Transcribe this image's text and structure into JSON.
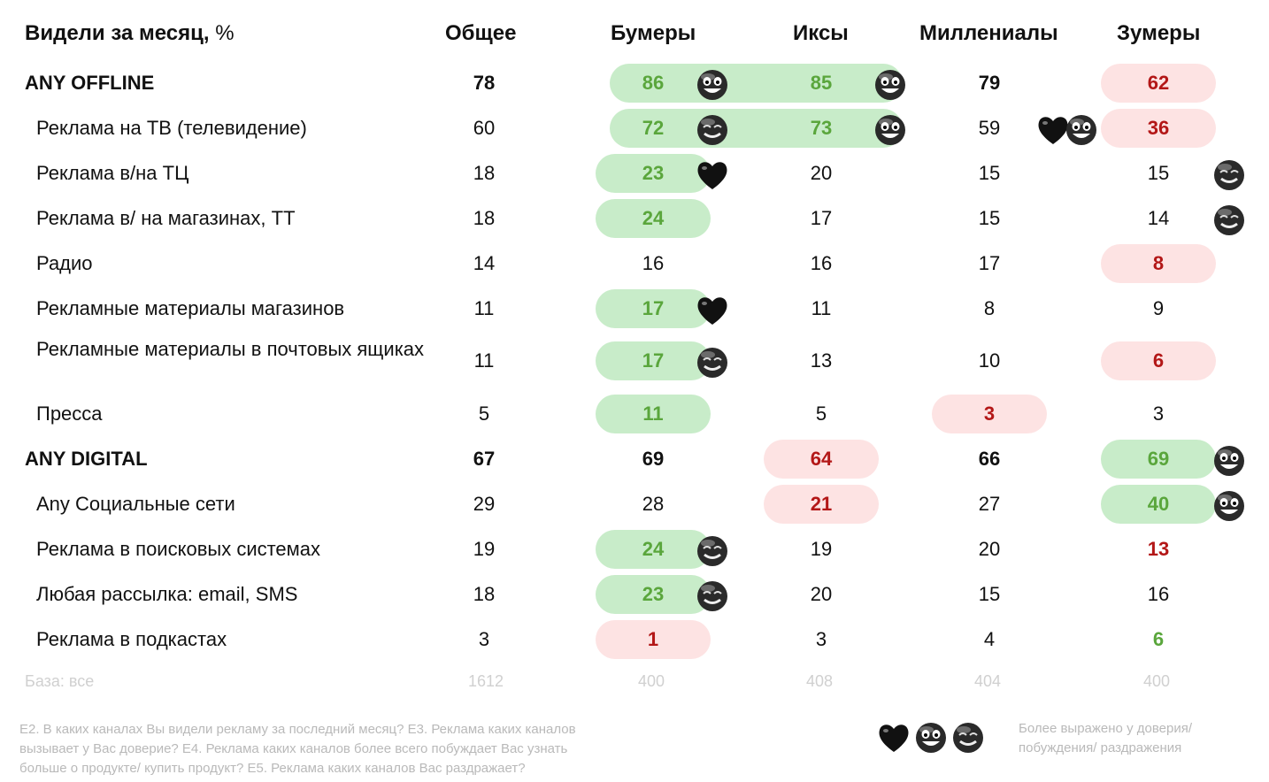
{
  "header": {
    "title_bold": "Видели за месяц,",
    "title_unit": " %",
    "col_total": "Общее",
    "col_boomers": "Бумеры",
    "col_x": "Иксы",
    "col_millennials": "Миллениалы",
    "col_zoomers": "Зумеры"
  },
  "colors": {
    "green_fill": "#c8ecc9",
    "green_text": "#5aa63c",
    "red_fill": "#fde3e3",
    "red_text": "#b31717",
    "muted": "#c8c8c8"
  },
  "rows": [
    {
      "label": "ANY OFFLINE",
      "group": true,
      "total": "78",
      "boomers": "86",
      "x": "85",
      "millennials": "79",
      "zoomers": "62"
    },
    {
      "label": "Реклама на ТВ (телевидение)",
      "total": "60",
      "boomers": "72",
      "x": "73",
      "millennials": "59",
      "zoomers": "36"
    },
    {
      "label": "Реклама в/на ТЦ",
      "total": "18",
      "boomers": "23",
      "x": "20",
      "millennials": "15",
      "zoomers": "15"
    },
    {
      "label": "Реклама в/ на магазинах, ТТ",
      "total": "18",
      "boomers": "24",
      "x": "17",
      "millennials": "15",
      "zoomers": "14"
    },
    {
      "label": "Радио",
      "total": "14",
      "boomers": "16",
      "x": "16",
      "millennials": "17",
      "zoomers": "8"
    },
    {
      "label": "Рекламные материалы магазинов",
      "total": "11",
      "boomers": "17",
      "x": "11",
      "millennials": "8",
      "zoomers": "9"
    },
    {
      "label": "Рекламные материалы в почтовых ящиках",
      "total": "11",
      "boomers": "17",
      "x": "13",
      "millennials": "10",
      "zoomers": "6"
    },
    {
      "label": "Пресса",
      "total": "5",
      "boomers": "11",
      "x": "5",
      "millennials": "3",
      "zoomers": "3"
    },
    {
      "label": "ANY DIGITAL",
      "group": true,
      "total": "67",
      "boomers": "69",
      "x": "64",
      "millennials": "66",
      "zoomers": "69"
    },
    {
      "label": "Any Социальные сети",
      "total": "29",
      "boomers": "28",
      "x": "21",
      "millennials": "27",
      "zoomers": "40"
    },
    {
      "label": "Реклама в поисковых системах",
      "total": "19",
      "boomers": "24",
      "x": "19",
      "millennials": "20",
      "zoomers": "13"
    },
    {
      "label": "Любая рассылка: email, SMS",
      "total": "18",
      "boomers": "23",
      "x": "20",
      "millennials": "15",
      "zoomers": "16"
    },
    {
      "label": "Реклама в подкастах",
      "total": "3",
      "boomers": "1",
      "x": "3",
      "millennials": "4",
      "zoomers": "6"
    }
  ],
  "base": {
    "label": "База: все",
    "total": "1612",
    "boomers": "400",
    "x": "408",
    "millennials": "404",
    "zoomers": "400"
  },
  "footnote_lines": [
    "Е2. В каких каналах Вы видели рекламу за последний месяц? Е3. Реклама каких каналов",
    "вызывает у Вас доверие? Е4. Реклама каких каналов более всего побуждает Вас узнать",
    "больше о продукте/ купить продукт? Е5. Реклама каких каналов Вас раздражает?"
  ],
  "legend_lines": [
    "Более выражено у доверия/",
    "побуждения/ раздражения"
  ],
  "legend_icons": [
    "heart-icon",
    "smile-icon",
    "grin-icon"
  ],
  "chart_data": {
    "type": "table",
    "title": "Видели за месяц, %",
    "categories": [
      "ANY OFFLINE",
      "Реклама на ТВ (телевидение)",
      "Реклама в/на ТЦ",
      "Реклама в/ на магазинах, ТТ",
      "Радио",
      "Рекламные материалы магазинов",
      "Рекламные материалы в почтовых ящиках",
      "Пресса",
      "ANY DIGITAL",
      "Any Социальные сети",
      "Реклама в поисковых системах",
      "Любая рассылка: email, SMS",
      "Реклама в подкастах"
    ],
    "series": [
      {
        "name": "Общее",
        "values": [
          78,
          60,
          18,
          18,
          14,
          11,
          11,
          5,
          67,
          29,
          19,
          18,
          3
        ]
      },
      {
        "name": "Бумеры",
        "values": [
          86,
          72,
          23,
          24,
          16,
          17,
          17,
          11,
          69,
          28,
          24,
          23,
          1
        ]
      },
      {
        "name": "Иксы",
        "values": [
          85,
          73,
          20,
          17,
          16,
          11,
          13,
          5,
          64,
          21,
          19,
          20,
          3
        ]
      },
      {
        "name": "Миллениалы",
        "values": [
          79,
          59,
          15,
          15,
          17,
          8,
          10,
          3,
          66,
          27,
          20,
          15,
          4
        ]
      },
      {
        "name": "Зумеры",
        "values": [
          62,
          36,
          15,
          14,
          8,
          9,
          6,
          3,
          69,
          40,
          13,
          16,
          6
        ]
      }
    ],
    "base": {
      "Общее": 1612,
      "Бумеры": 400,
      "Иксы": 408,
      "Миллениалы": 404,
      "Зумеры": 400
    }
  }
}
